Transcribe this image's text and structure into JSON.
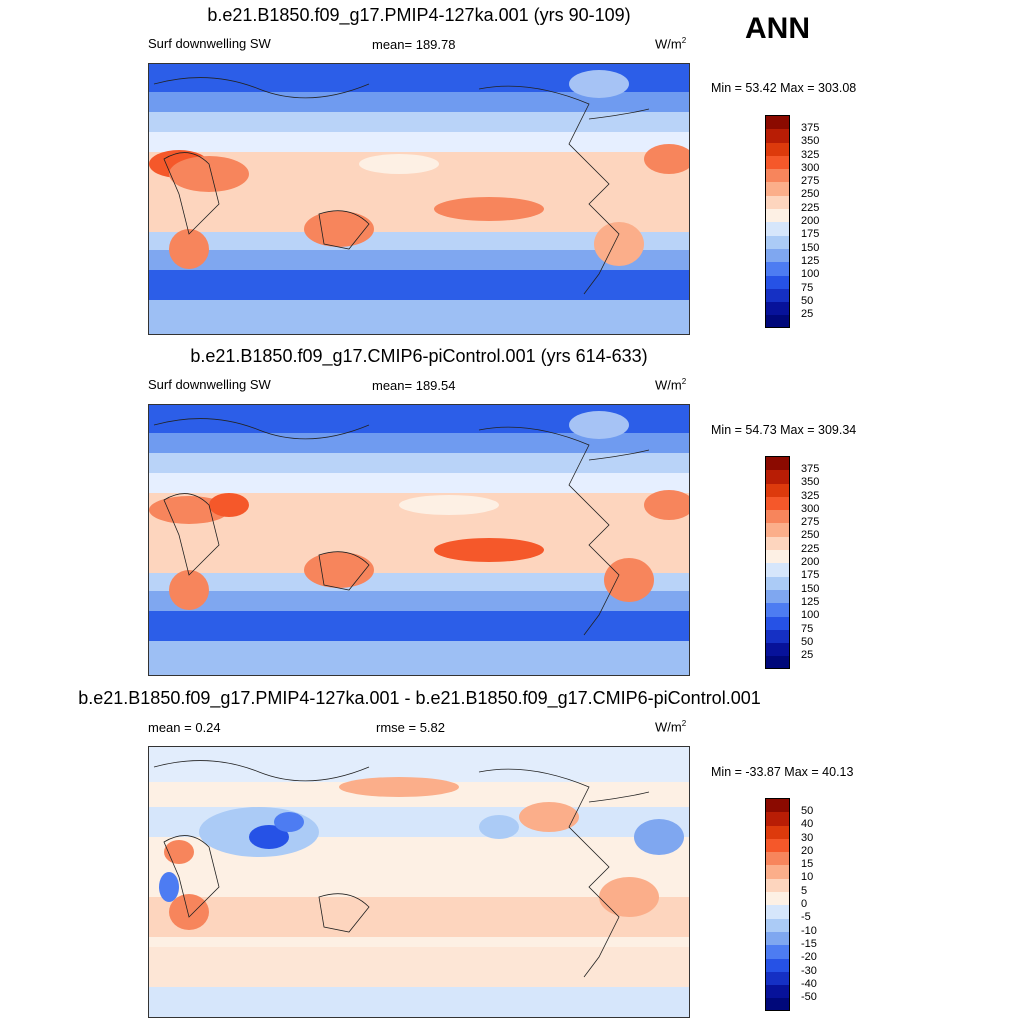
{
  "season": "ANN",
  "panels": [
    {
      "title": "b.e21.B1850.f09_g17.PMIP4-127ka.001 (yrs 90-109)",
      "left_label": "Surf downwelling SW",
      "center_label": "mean= 189.78",
      "units_base": "W/m",
      "units_exp": "2",
      "minmax": "Min =  53.42 Max = 303.08",
      "colorbar_ticks": [
        "375",
        "350",
        "325",
        "300",
        "275",
        "250",
        "225",
        "200",
        "175",
        "150",
        "125",
        "100",
        "75",
        "50",
        "25"
      ]
    },
    {
      "title": "b.e21.B1850.f09_g17.CMIP6-piControl.001 (yrs 614-633)",
      "left_label": "Surf downwelling SW",
      "center_label": "mean= 189.54",
      "units_base": "W/m",
      "units_exp": "2",
      "minmax": "Min =  54.73 Max = 309.34",
      "colorbar_ticks": [
        "375",
        "350",
        "325",
        "300",
        "275",
        "250",
        "225",
        "200",
        "175",
        "150",
        "125",
        "100",
        "75",
        "50",
        "25"
      ]
    },
    {
      "title": "b.e21.B1850.f09_g17.PMIP4-127ka.001 - b.e21.B1850.f09_g17.CMIP6-piControl.001",
      "left_label": "mean =   0.24",
      "center_label": "rmse =   5.82",
      "units_base": "W/m",
      "units_exp": "2",
      "minmax": "Min = -33.87 Max =  40.13",
      "colorbar_ticks": [
        "50",
        "40",
        "30",
        "20",
        "15",
        "10",
        "5",
        "0",
        "-5",
        "-10",
        "-15",
        "-20",
        "-30",
        "-40",
        "-50"
      ]
    }
  ],
  "colorbar_colors": [
    "#8b0a00",
    "#b81d05",
    "#dd3a0c",
    "#f5582a",
    "#f7855c",
    "#fbae8a",
    "#fdd5be",
    "#fdf0e4",
    "#d6e6fb",
    "#abcbf6",
    "#7fa7f0",
    "#4d7cf2",
    "#2652e6",
    "#1530c4",
    "#07129a",
    "#00087a"
  ]
}
